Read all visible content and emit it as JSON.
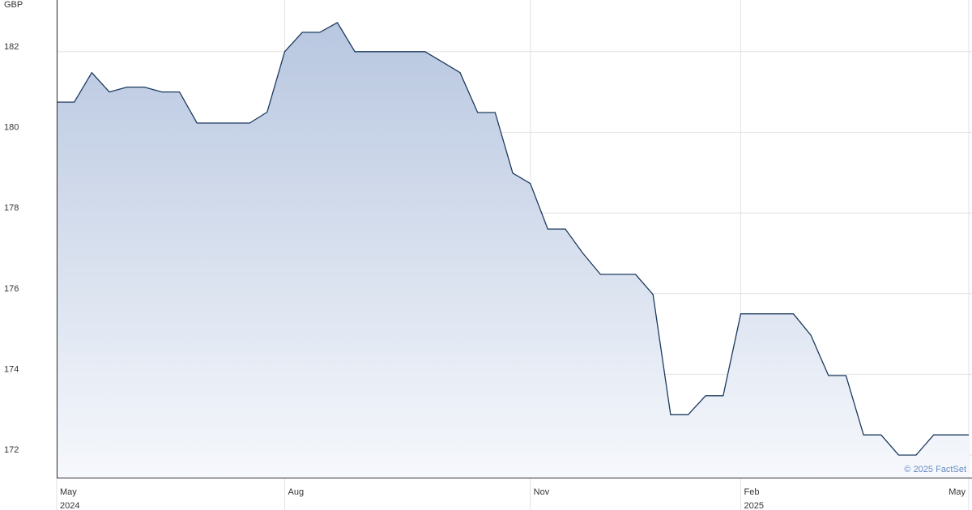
{
  "chart_data": {
    "type": "area",
    "y_unit": "GBP",
    "credit": "© 2025 FactSet",
    "categories": [
      "May",
      null,
      null,
      null,
      null,
      null,
      null,
      null,
      null,
      null,
      null,
      null,
      null,
      "Aug",
      null,
      null,
      null,
      null,
      null,
      null,
      null,
      null,
      null,
      null,
      null,
      null,
      null,
      "Nov",
      null,
      null,
      null,
      null,
      null,
      null,
      null,
      null,
      null,
      null,
      null,
      "Feb",
      null,
      null,
      null,
      null,
      null,
      null,
      null,
      null,
      null,
      null,
      null,
      null,
      "May"
    ],
    "category_years": [
      "2024",
      null,
      null,
      null,
      null,
      null,
      null,
      null,
      null,
      null,
      null,
      null,
      null,
      null,
      null,
      null,
      null,
      null,
      null,
      null,
      null,
      null,
      null,
      null,
      null,
      null,
      null,
      null,
      null,
      null,
      null,
      null,
      null,
      null,
      null,
      null,
      null,
      null,
      null,
      "2025",
      null,
      null,
      null,
      null,
      null,
      null,
      null,
      null,
      null,
      null,
      null,
      null,
      null
    ],
    "values": [
      180.75,
      180.75,
      181.48,
      181.0,
      181.12,
      181.12,
      181.0,
      181.0,
      180.23,
      180.23,
      180.23,
      180.23,
      180.5,
      182.0,
      182.48,
      182.48,
      182.72,
      182.0,
      182.0,
      182.0,
      182.0,
      182.0,
      181.74,
      181.48,
      180.49,
      180.49,
      178.99,
      178.73,
      177.6,
      177.6,
      177.0,
      176.48,
      176.48,
      176.48,
      175.98,
      173.0,
      173.0,
      173.47,
      173.47,
      175.5,
      175.5,
      175.5,
      175.5,
      174.97,
      173.97,
      173.97,
      172.5,
      172.5,
      172.0,
      172.0,
      172.5,
      172.5,
      172.5
    ],
    "color": "#1c3a5e",
    "area_colors": [
      "#b8c7e0",
      "#f6f8fc"
    ],
    "ylim": [
      171.44,
      183.28
    ],
    "yticks": [
      172,
      174,
      176,
      178,
      180,
      182
    ],
    "grid": true
  }
}
